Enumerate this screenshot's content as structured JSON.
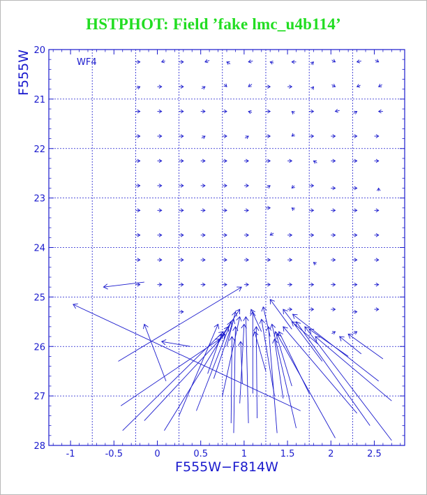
{
  "title": "HSTPHOT: Field ’fake lmc_u4b114’",
  "colors": {
    "title": "#22dd22",
    "axes": "#1a1acd"
  },
  "chart_data": {
    "type": "vector-field",
    "xlabel": "F555W−F814W",
    "ylabel": "F555W",
    "panel_label": "WF4",
    "xlim": [
      -1.25,
      2.85
    ],
    "ylim": [
      28,
      20
    ],
    "x_ticks": [
      "-1",
      "-0.5",
      "0",
      "0.5",
      "1",
      "1.5",
      "2",
      "2.5"
    ],
    "x_tick_values": [
      -1,
      -0.5,
      0,
      0.5,
      1,
      1.5,
      2,
      2.5
    ],
    "y_ticks": [
      "20",
      "21",
      "22",
      "23",
      "24",
      "25",
      "26",
      "27",
      "28"
    ],
    "y_tick_values": [
      20,
      21,
      22,
      23,
      24,
      25,
      26,
      27,
      28
    ],
    "grid": true,
    "grid_x": [
      -0.75,
      -0.25,
      0.25,
      0.75,
      1.25,
      1.75,
      2.25
    ],
    "grid_y": [
      21,
      22,
      23,
      24,
      25,
      26,
      27
    ],
    "small_vectors": [
      {
        "x": -0.2,
        "y": 20.25,
        "dx": 0.05,
        "dy": 0.0
      },
      {
        "x": 0.05,
        "y": 20.25,
        "dx": -0.04,
        "dy": 0.02
      },
      {
        "x": 0.3,
        "y": 20.25,
        "dx": 0.05,
        "dy": 0.0
      },
      {
        "x": 0.55,
        "y": 20.25,
        "dx": -0.05,
        "dy": 0.03
      },
      {
        "x": 0.8,
        "y": 20.25,
        "dx": -0.04,
        "dy": -0.04
      },
      {
        "x": 1.05,
        "y": 20.25,
        "dx": -0.05,
        "dy": 0.02
      },
      {
        "x": 1.3,
        "y": 20.25,
        "dx": -0.04,
        "dy": -0.02
      },
      {
        "x": 1.55,
        "y": 20.25,
        "dx": -0.05,
        "dy": 0.0
      },
      {
        "x": 1.8,
        "y": 20.25,
        "dx": 0.03,
        "dy": -0.05
      },
      {
        "x": 2.05,
        "y": 20.25,
        "dx": 0.04,
        "dy": 0.04
      },
      {
        "x": 2.3,
        "y": 20.25,
        "dx": -0.05,
        "dy": 0.02
      },
      {
        "x": 2.55,
        "y": 20.25,
        "dx": 0.04,
        "dy": 0.04
      },
      {
        "x": -0.2,
        "y": 20.75,
        "dx": 0.04,
        "dy": -0.03
      },
      {
        "x": 0.05,
        "y": 20.75,
        "dx": 0.05,
        "dy": 0.0
      },
      {
        "x": 0.3,
        "y": 20.75,
        "dx": 0.05,
        "dy": 0.0
      },
      {
        "x": 0.55,
        "y": 20.75,
        "dx": 0.04,
        "dy": -0.04
      },
      {
        "x": 0.8,
        "y": 20.75,
        "dx": 0.03,
        "dy": 0.05
      },
      {
        "x": 1.05,
        "y": 20.75,
        "dx": -0.04,
        "dy": 0.05
      },
      {
        "x": 1.3,
        "y": 20.75,
        "dx": 0.05,
        "dy": 0.0
      },
      {
        "x": 1.55,
        "y": 20.75,
        "dx": 0.05,
        "dy": 0.0
      },
      {
        "x": 1.8,
        "y": 20.75,
        "dx": 0.02,
        "dy": -0.05
      },
      {
        "x": 2.05,
        "y": 20.75,
        "dx": 0.04,
        "dy": 0.04
      },
      {
        "x": 2.3,
        "y": 20.75,
        "dx": -0.04,
        "dy": 0.03
      },
      {
        "x": 2.55,
        "y": 20.75,
        "dx": -0.04,
        "dy": 0.04
      },
      {
        "x": -0.2,
        "y": 21.25,
        "dx": 0.05,
        "dy": 0.0
      },
      {
        "x": 0.05,
        "y": 21.25,
        "dx": 0.05,
        "dy": 0.0
      },
      {
        "x": 0.3,
        "y": 21.25,
        "dx": 0.05,
        "dy": 0.0
      },
      {
        "x": 0.55,
        "y": 21.25,
        "dx": 0.05,
        "dy": 0.0
      },
      {
        "x": 0.8,
        "y": 21.25,
        "dx": 0.05,
        "dy": 0.0
      },
      {
        "x": 1.05,
        "y": 21.25,
        "dx": -0.04,
        "dy": -0.02
      },
      {
        "x": 1.3,
        "y": 21.25,
        "dx": 0.05,
        "dy": 0.0
      },
      {
        "x": 1.55,
        "y": 21.25,
        "dx": -0.03,
        "dy": -0.04
      },
      {
        "x": 1.8,
        "y": 21.25,
        "dx": 0.05,
        "dy": 0.0
      },
      {
        "x": 2.05,
        "y": 21.25,
        "dx": -0.05,
        "dy": 0.02
      },
      {
        "x": 2.3,
        "y": 21.25,
        "dx": 0.04,
        "dy": -0.04
      },
      {
        "x": 2.55,
        "y": 21.25,
        "dx": -0.05,
        "dy": 0.0
      },
      {
        "x": -0.2,
        "y": 21.75,
        "dx": 0.05,
        "dy": 0.0
      },
      {
        "x": 0.05,
        "y": 21.75,
        "dx": 0.05,
        "dy": 0.0
      },
      {
        "x": 0.3,
        "y": 21.75,
        "dx": 0.05,
        "dy": 0.0
      },
      {
        "x": 0.55,
        "y": 21.75,
        "dx": 0.04,
        "dy": -0.04
      },
      {
        "x": 0.8,
        "y": 21.75,
        "dx": 0.05,
        "dy": 0.0
      },
      {
        "x": 1.05,
        "y": 21.75,
        "dx": 0.04,
        "dy": -0.04
      },
      {
        "x": 1.3,
        "y": 21.75,
        "dx": 0.05,
        "dy": 0.0
      },
      {
        "x": 1.55,
        "y": 21.75,
        "dx": -0.03,
        "dy": 0.04
      },
      {
        "x": 1.8,
        "y": 21.75,
        "dx": 0.05,
        "dy": 0.0
      },
      {
        "x": 2.05,
        "y": 21.75,
        "dx": 0.05,
        "dy": 0.0
      },
      {
        "x": 2.3,
        "y": 21.75,
        "dx": 0.05,
        "dy": 0.0
      },
      {
        "x": 2.55,
        "y": 21.75,
        "dx": 0.05,
        "dy": 0.0
      },
      {
        "x": -0.2,
        "y": 22.25,
        "dx": 0.05,
        "dy": 0.0
      },
      {
        "x": 0.05,
        "y": 22.25,
        "dx": 0.05,
        "dy": 0.0
      },
      {
        "x": 0.3,
        "y": 22.25,
        "dx": 0.05,
        "dy": 0.0
      },
      {
        "x": 0.55,
        "y": 22.25,
        "dx": 0.05,
        "dy": 0.0
      },
      {
        "x": 0.8,
        "y": 22.25,
        "dx": 0.05,
        "dy": 0.0
      },
      {
        "x": 1.05,
        "y": 22.25,
        "dx": 0.05,
        "dy": 0.0
      },
      {
        "x": 1.3,
        "y": 22.25,
        "dx": 0.05,
        "dy": 0.0
      },
      {
        "x": 1.55,
        "y": 22.25,
        "dx": 0.05,
        "dy": 0.0
      },
      {
        "x": 1.8,
        "y": 22.25,
        "dx": -0.04,
        "dy": -0.04
      },
      {
        "x": 2.05,
        "y": 22.25,
        "dx": 0.05,
        "dy": 0.0
      },
      {
        "x": 2.3,
        "y": 22.25,
        "dx": 0.05,
        "dy": 0.0
      },
      {
        "x": 2.55,
        "y": 22.25,
        "dx": 0.05,
        "dy": 0.0
      },
      {
        "x": -0.2,
        "y": 22.75,
        "dx": 0.05,
        "dy": 0.0
      },
      {
        "x": 0.05,
        "y": 22.75,
        "dx": 0.05,
        "dy": 0.0
      },
      {
        "x": 0.3,
        "y": 22.75,
        "dx": 0.05,
        "dy": 0.0
      },
      {
        "x": 0.55,
        "y": 22.75,
        "dx": 0.05,
        "dy": 0.0
      },
      {
        "x": 0.8,
        "y": 22.75,
        "dx": 0.05,
        "dy": 0.0
      },
      {
        "x": 1.05,
        "y": 22.75,
        "dx": 0.05,
        "dy": 0.0
      },
      {
        "x": 1.3,
        "y": 22.75,
        "dx": 0.04,
        "dy": -0.04
      },
      {
        "x": 1.55,
        "y": 22.8,
        "dx": -0.03,
        "dy": 0.05
      },
      {
        "x": 1.8,
        "y": 22.75,
        "dx": 0.05,
        "dy": 0.0
      },
      {
        "x": 2.05,
        "y": 22.8,
        "dx": 0.05,
        "dy": 0.0
      },
      {
        "x": 2.3,
        "y": 22.8,
        "dx": 0.05,
        "dy": 0.0
      },
      {
        "x": 2.55,
        "y": 22.8,
        "dx": 0.0,
        "dy": -0.06
      },
      {
        "x": -0.2,
        "y": 23.25,
        "dx": 0.05,
        "dy": 0.0
      },
      {
        "x": 0.05,
        "y": 23.25,
        "dx": 0.05,
        "dy": 0.0
      },
      {
        "x": 0.3,
        "y": 23.25,
        "dx": 0.05,
        "dy": 0.0
      },
      {
        "x": 0.55,
        "y": 23.25,
        "dx": 0.05,
        "dy": 0.0
      },
      {
        "x": 0.8,
        "y": 23.25,
        "dx": 0.05,
        "dy": 0.0
      },
      {
        "x": 1.05,
        "y": 23.25,
        "dx": 0.05,
        "dy": 0.0
      },
      {
        "x": 1.3,
        "y": 23.2,
        "dx": 0.05,
        "dy": 0.0
      },
      {
        "x": 1.55,
        "y": 23.2,
        "dx": -0.03,
        "dy": -0.04
      },
      {
        "x": 1.8,
        "y": 23.25,
        "dx": 0.05,
        "dy": 0.0
      },
      {
        "x": 2.05,
        "y": 23.25,
        "dx": 0.05,
        "dy": 0.0
      },
      {
        "x": 2.3,
        "y": 23.25,
        "dx": 0.05,
        "dy": 0.0
      },
      {
        "x": 2.55,
        "y": 23.25,
        "dx": 0.05,
        "dy": 0.0
      },
      {
        "x": -0.2,
        "y": 23.75,
        "dx": 0.05,
        "dy": 0.0
      },
      {
        "x": 0.05,
        "y": 23.75,
        "dx": 0.05,
        "dy": 0.0
      },
      {
        "x": 0.3,
        "y": 23.75,
        "dx": 0.05,
        "dy": 0.0
      },
      {
        "x": 0.55,
        "y": 23.75,
        "dx": 0.05,
        "dy": 0.0
      },
      {
        "x": 0.8,
        "y": 23.75,
        "dx": 0.05,
        "dy": 0.0
      },
      {
        "x": 1.05,
        "y": 23.75,
        "dx": 0.05,
        "dy": 0.0
      },
      {
        "x": 1.3,
        "y": 23.75,
        "dx": -0.04,
        "dy": 0.04
      },
      {
        "x": 1.55,
        "y": 23.75,
        "dx": 0.05,
        "dy": 0.0
      },
      {
        "x": 1.8,
        "y": 23.75,
        "dx": 0.05,
        "dy": 0.0
      },
      {
        "x": 2.05,
        "y": 23.75,
        "dx": 0.05,
        "dy": 0.0
      },
      {
        "x": 2.3,
        "y": 23.75,
        "dx": 0.05,
        "dy": 0.0
      },
      {
        "x": 2.55,
        "y": 23.75,
        "dx": 0.05,
        "dy": 0.0
      },
      {
        "x": -0.2,
        "y": 24.25,
        "dx": 0.05,
        "dy": 0.0
      },
      {
        "x": 0.05,
        "y": 24.25,
        "dx": 0.05,
        "dy": 0.0
      },
      {
        "x": 0.3,
        "y": 24.25,
        "dx": 0.05,
        "dy": 0.0
      },
      {
        "x": 0.55,
        "y": 24.25,
        "dx": 0.05,
        "dy": 0.0
      },
      {
        "x": 0.8,
        "y": 24.25,
        "dx": 0.05,
        "dy": 0.0
      },
      {
        "x": 1.05,
        "y": 24.25,
        "dx": 0.05,
        "dy": 0.0
      },
      {
        "x": 1.3,
        "y": 24.25,
        "dx": 0.05,
        "dy": 0.0
      },
      {
        "x": 1.55,
        "y": 24.25,
        "dx": 0.05,
        "dy": 0.0
      },
      {
        "x": 1.8,
        "y": 24.3,
        "dx": -0.03,
        "dy": -0.04
      },
      {
        "x": 2.05,
        "y": 24.25,
        "dx": 0.05,
        "dy": 0.0
      },
      {
        "x": 2.3,
        "y": 24.25,
        "dx": 0.05,
        "dy": 0.0
      },
      {
        "x": 2.55,
        "y": 24.25,
        "dx": 0.05,
        "dy": 0.0
      },
      {
        "x": -0.2,
        "y": 24.75,
        "dx": 0.05,
        "dy": 0.0
      },
      {
        "x": 0.05,
        "y": 24.75,
        "dx": 0.05,
        "dy": 0.0
      },
      {
        "x": 0.3,
        "y": 24.75,
        "dx": 0.05,
        "dy": 0.0
      },
      {
        "x": 0.55,
        "y": 24.75,
        "dx": 0.05,
        "dy": 0.0
      },
      {
        "x": 0.8,
        "y": 24.75,
        "dx": 0.05,
        "dy": 0.0
      },
      {
        "x": 1.05,
        "y": 24.75,
        "dx": 0.05,
        "dy": 0.0
      },
      {
        "x": 1.3,
        "y": 24.75,
        "dx": 0.05,
        "dy": 0.0
      },
      {
        "x": 1.55,
        "y": 24.75,
        "dx": 0.05,
        "dy": 0.0
      },
      {
        "x": 1.8,
        "y": 24.75,
        "dx": 0.05,
        "dy": 0.0
      },
      {
        "x": 2.05,
        "y": 24.75,
        "dx": 0.05,
        "dy": 0.0
      },
      {
        "x": 2.3,
        "y": 24.75,
        "dx": 0.05,
        "dy": 0.0
      },
      {
        "x": 2.55,
        "y": 24.75,
        "dx": 0.05,
        "dy": 0.0
      },
      {
        "x": 0.3,
        "y": 25.3,
        "dx": 0.05,
        "dy": 0.0
      },
      {
        "x": 1.55,
        "y": 25.25,
        "dx": 0.05,
        "dy": 0.0
      },
      {
        "x": 1.8,
        "y": 25.25,
        "dx": 0.05,
        "dy": 0.0
      },
      {
        "x": 2.05,
        "y": 25.25,
        "dx": 0.05,
        "dy": 0.0
      },
      {
        "x": 2.3,
        "y": 25.3,
        "dx": 0.05,
        "dy": 0.0
      },
      {
        "x": 2.55,
        "y": 25.25,
        "dx": 0.05,
        "dy": 0.0
      },
      {
        "x": 2.05,
        "y": 25.7,
        "dx": 0.04,
        "dy": -0.04
      },
      {
        "x": 2.3,
        "y": 25.7,
        "dx": 0.04,
        "dy": -0.04
      }
    ],
    "long_vectors": [
      {
        "x0": -0.15,
        "y0": 24.7,
        "x1": -0.62,
        "y1": 24.8
      },
      {
        "x0": 1.65,
        "y0": 27.3,
        "x1": -0.97,
        "y1": 25.15
      },
      {
        "x0": 0.1,
        "y0": 26.7,
        "x1": -0.15,
        "y1": 25.55
      },
      {
        "x0": 0.38,
        "y0": 26.0,
        "x1": 0.05,
        "y1": 25.9
      },
      {
        "x0": -0.45,
        "y0": 26.3,
        "x1": 0.97,
        "y1": 24.8
      },
      {
        "x0": -0.42,
        "y0": 27.2,
        "x1": 0.72,
        "y1": 25.85
      },
      {
        "x0": -0.4,
        "y0": 27.7,
        "x1": 0.76,
        "y1": 25.7
      },
      {
        "x0": -0.15,
        "y0": 27.5,
        "x1": 0.78,
        "y1": 25.75
      },
      {
        "x0": 0.08,
        "y0": 27.7,
        "x1": 0.82,
        "y1": 25.6
      },
      {
        "x0": 0.25,
        "y0": 27.4,
        "x1": 0.7,
        "y1": 25.55
      },
      {
        "x0": 0.45,
        "y0": 27.3,
        "x1": 0.85,
        "y1": 25.5
      },
      {
        "x0": 0.58,
        "y0": 26.55,
        "x1": 0.74,
        "y1": 25.75
      },
      {
        "x0": 0.65,
        "y0": 26.65,
        "x1": 0.88,
        "y1": 25.45
      },
      {
        "x0": 0.75,
        "y0": 27.0,
        "x1": 0.95,
        "y1": 25.4
      },
      {
        "x0": 0.85,
        "y0": 27.55,
        "x1": 0.86,
        "y1": 25.8
      },
      {
        "x0": 0.88,
        "y0": 27.75,
        "x1": 0.9,
        "y1": 25.6
      },
      {
        "x0": 0.95,
        "y0": 27.15,
        "x1": 1.0,
        "y1": 25.55
      },
      {
        "x0": 0.98,
        "y0": 26.75,
        "x1": 0.96,
        "y1": 25.9
      },
      {
        "x0": 1.05,
        "y0": 27.55,
        "x1": 1.02,
        "y1": 25.4
      },
      {
        "x0": 1.1,
        "y0": 26.95,
        "x1": 1.1,
        "y1": 25.3
      },
      {
        "x0": 1.15,
        "y0": 27.45,
        "x1": 1.14,
        "y1": 25.6
      },
      {
        "x0": 1.25,
        "y0": 26.5,
        "x1": 1.12,
        "y1": 25.7
      },
      {
        "x0": 1.35,
        "y0": 27.0,
        "x1": 1.2,
        "y1": 25.45
      },
      {
        "x0": 1.38,
        "y0": 27.75,
        "x1": 1.28,
        "y1": 25.6
      },
      {
        "x0": 1.45,
        "y0": 27.05,
        "x1": 1.35,
        "y1": 25.85
      },
      {
        "x0": 1.6,
        "y0": 27.65,
        "x1": 1.32,
        "y1": 25.55
      },
      {
        "x0": 1.55,
        "y0": 26.8,
        "x1": 1.36,
        "y1": 25.7
      },
      {
        "x0": 1.75,
        "y0": 26.95,
        "x1": 1.4,
        "y1": 25.7
      },
      {
        "x0": 2.05,
        "y0": 27.85,
        "x1": 1.38,
        "y1": 25.75
      },
      {
        "x0": 2.3,
        "y0": 27.35,
        "x1": 1.45,
        "y1": 25.6
      },
      {
        "x0": 2.45,
        "y0": 27.6,
        "x1": 1.6,
        "y1": 25.5
      },
      {
        "x0": 2.7,
        "y0": 27.9,
        "x1": 1.7,
        "y1": 25.6
      },
      {
        "x0": 2.7,
        "y0": 27.1,
        "x1": 1.82,
        "y1": 25.8
      },
      {
        "x0": 2.55,
        "y0": 26.7,
        "x1": 1.56,
        "y1": 25.35
      },
      {
        "x0": 2.6,
        "y0": 26.25,
        "x1": 2.2,
        "y1": 25.75
      },
      {
        "x0": 2.35,
        "y0": 26.15,
        "x1": 2.1,
        "y1": 25.8
      },
      {
        "x0": 1.9,
        "y0": 26.3,
        "x1": 1.45,
        "y1": 25.25
      },
      {
        "x0": 1.85,
        "y0": 25.95,
        "x1": 1.55,
        "y1": 25.5
      },
      {
        "x0": 2.2,
        "y0": 26.2,
        "x1": 1.75,
        "y1": 25.65
      },
      {
        "x0": 1.55,
        "y0": 25.65,
        "x1": 1.3,
        "y1": 25.05
      },
      {
        "x0": 0.8,
        "y0": 26.0,
        "x1": 0.9,
        "y1": 25.3
      },
      {
        "x0": 0.7,
        "y0": 25.9,
        "x1": 0.95,
        "y1": 25.25
      },
      {
        "x0": 1.2,
        "y0": 25.7,
        "x1": 1.08,
        "y1": 25.25
      },
      {
        "x0": 1.3,
        "y0": 25.8,
        "x1": 1.22,
        "y1": 25.2
      }
    ]
  }
}
